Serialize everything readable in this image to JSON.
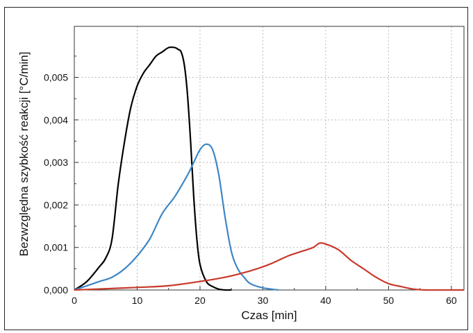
{
  "chart_data": {
    "type": "line",
    "title": "",
    "xlabel": "Czas [min]",
    "ylabel": "Bezwzględna szybkość reakcji [°C/min]",
    "xlim": [
      0,
      62
    ],
    "ylim": [
      0,
      0.0062
    ],
    "xticks": [
      0,
      10,
      20,
      30,
      40,
      50,
      60
    ],
    "xtick_labels": [
      "0",
      "10",
      "20",
      "30",
      "40",
      "50",
      "60"
    ],
    "yticks": [
      0,
      0.001,
      0.002,
      0.003,
      0.004,
      0.005
    ],
    "ytick_labels": [
      "0,000",
      "0,001",
      "0,002",
      "0,003",
      "0,004",
      "0,005"
    ],
    "grid": true,
    "legend": "none",
    "series": [
      {
        "color": "#000000",
        "points": [
          [
            0,
            0
          ],
          [
            2,
            0.0002
          ],
          [
            4,
            0.00055
          ],
          [
            5,
            0.00075
          ],
          [
            6,
            0.0012
          ],
          [
            7,
            0.0025
          ],
          [
            8,
            0.0035
          ],
          [
            9,
            0.0043
          ],
          [
            10,
            0.0048
          ],
          [
            11,
            0.0051
          ],
          [
            12,
            0.0053
          ],
          [
            13,
            0.0055
          ],
          [
            14,
            0.0056
          ],
          [
            15,
            0.0057
          ],
          [
            16,
            0.0057
          ],
          [
            16.5,
            0.00566
          ],
          [
            17,
            0.0056
          ],
          [
            17.5,
            0.0053
          ],
          [
            18,
            0.0046
          ],
          [
            18.5,
            0.0035
          ],
          [
            19,
            0.0022
          ],
          [
            19.5,
            0.0012
          ],
          [
            20,
            0.0006
          ],
          [
            21,
            0.0002
          ],
          [
            22,
            8e-05
          ],
          [
            23,
            2e-05
          ],
          [
            24,
            0.0
          ],
          [
            25,
            0.0
          ]
        ]
      },
      {
        "color": "#3d86c6",
        "points": [
          [
            0,
            0
          ],
          [
            2,
            0.0001
          ],
          [
            4,
            0.0002
          ],
          [
            6,
            0.0003
          ],
          [
            8,
            0.0005
          ],
          [
            10,
            0.0008
          ],
          [
            12,
            0.0012
          ],
          [
            14,
            0.0018
          ],
          [
            16,
            0.0022
          ],
          [
            18,
            0.0027
          ],
          [
            19,
            0.003
          ],
          [
            20,
            0.0033
          ],
          [
            21,
            0.00343
          ],
          [
            22,
            0.0033
          ],
          [
            23,
            0.0027
          ],
          [
            24,
            0.0017
          ],
          [
            25,
            0.0009
          ],
          [
            26,
            0.0005
          ],
          [
            27,
            0.0003
          ],
          [
            28,
            0.00015
          ],
          [
            30,
            5e-05
          ],
          [
            32.5,
            0.0
          ]
        ]
      },
      {
        "color": "#c8392b",
        "points": [
          [
            0,
            0
          ],
          [
            5,
            3e-05
          ],
          [
            10,
            6e-05
          ],
          [
            15,
            0.0001
          ],
          [
            20,
            0.0002
          ],
          [
            24,
            0.0003
          ],
          [
            28,
            0.00045
          ],
          [
            31,
            0.0006
          ],
          [
            34,
            0.0008
          ],
          [
            36,
            0.0009
          ],
          [
            38,
            0.001
          ],
          [
            39,
            0.0011
          ],
          [
            40,
            0.00108
          ],
          [
            42,
            0.00095
          ],
          [
            44,
            0.0007
          ],
          [
            46,
            0.0005
          ],
          [
            48,
            0.0003
          ],
          [
            50,
            0.00015
          ],
          [
            52,
            8e-05
          ],
          [
            54,
            2e-05
          ],
          [
            56,
            0.0
          ],
          [
            60,
            0.0
          ],
          [
            62,
            0.0
          ]
        ]
      }
    ]
  }
}
